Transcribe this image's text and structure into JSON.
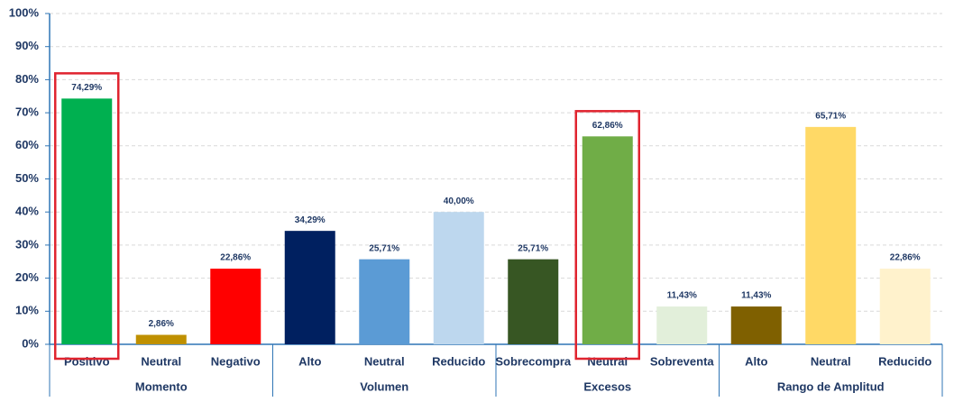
{
  "chart_data": {
    "type": "bar",
    "groups": [
      {
        "name": "Momento",
        "categories": [
          "Positivo",
          "Neutral",
          "Negativo"
        ],
        "values": [
          74.29,
          2.86,
          22.86
        ],
        "value_labels": [
          "74,29%",
          "2,86%",
          "22,86%"
        ],
        "colors": [
          "#00b050",
          "#bf9000",
          "#ff0000"
        ],
        "highlighted": [
          true,
          false,
          false
        ]
      },
      {
        "name": "Volumen",
        "categories": [
          "Alto",
          "Neutral",
          "Reducido"
        ],
        "values": [
          34.29,
          25.71,
          40
        ],
        "value_labels": [
          "34,29%",
          "25,71%",
          "40,00%"
        ],
        "colors": [
          "#002060",
          "#5b9bd5",
          "#bdd7ee"
        ],
        "highlighted": [
          false,
          false,
          false
        ]
      },
      {
        "name": "Excesos",
        "categories": [
          "Sobrecompra",
          "Neutral",
          "Sobreventa"
        ],
        "values": [
          25.71,
          62.86,
          11.43
        ],
        "value_labels": [
          "25,71%",
          "62,86%",
          "11,43%"
        ],
        "colors": [
          "#375623",
          "#70ad47",
          "#e2efda"
        ],
        "highlighted": [
          false,
          true,
          false
        ]
      },
      {
        "name": "Rango de Amplitud",
        "categories": [
          "Alto",
          "Neutral",
          "Reducido"
        ],
        "values": [
          11.43,
          65.71,
          22.86
        ],
        "value_labels": [
          "11,43%",
          "65,71%",
          "22,86%"
        ],
        "colors": [
          "#7f6000",
          "#ffd966",
          "#fff2cc"
        ],
        "highlighted": [
          false,
          false,
          false
        ]
      }
    ],
    "ylim": [
      0,
      100
    ],
    "yticks": [
      {
        "value": 0,
        "label": "0%"
      },
      {
        "value": 10,
        "label": "10%"
      },
      {
        "value": 20,
        "label": "20%"
      },
      {
        "value": 30,
        "label": "30%"
      },
      {
        "value": 40,
        "label": "40%"
      },
      {
        "value": 50,
        "label": "50%"
      },
      {
        "value": 60,
        "label": "60%"
      },
      {
        "value": 70,
        "label": "70%"
      },
      {
        "value": 80,
        "label": "80%"
      },
      {
        "value": 90,
        "label": "90%"
      },
      {
        "value": 100,
        "label": "100%"
      }
    ],
    "grid": true
  }
}
